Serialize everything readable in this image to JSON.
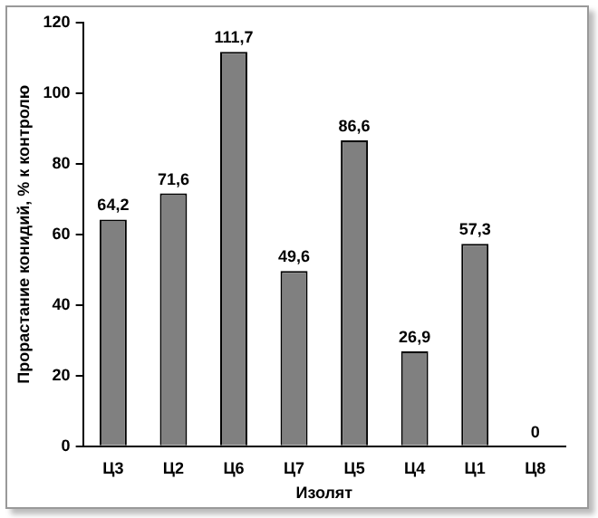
{
  "chart_data": {
    "type": "bar",
    "xlabel": "Изолят",
    "ylabel": "Прорастание конидий, % к контролю",
    "categories": [
      "Ц3",
      "Ц2",
      "Ц6",
      "Ц7",
      "Ц5",
      "Ц4",
      "Ц1",
      "Ц8"
    ],
    "values": [
      64.2,
      71.6,
      111.7,
      49.6,
      86.6,
      26.9,
      57.3,
      0
    ],
    "value_labels": [
      "64,2",
      "71,6",
      "111,7",
      "49,6",
      "86,6",
      "26,9",
      "57,3",
      "0"
    ],
    "color": "#808080",
    "ylim": [
      0,
      120
    ],
    "yticks": [
      0,
      20,
      40,
      60,
      80,
      100,
      120
    ],
    "grid": false,
    "legend": false
  }
}
